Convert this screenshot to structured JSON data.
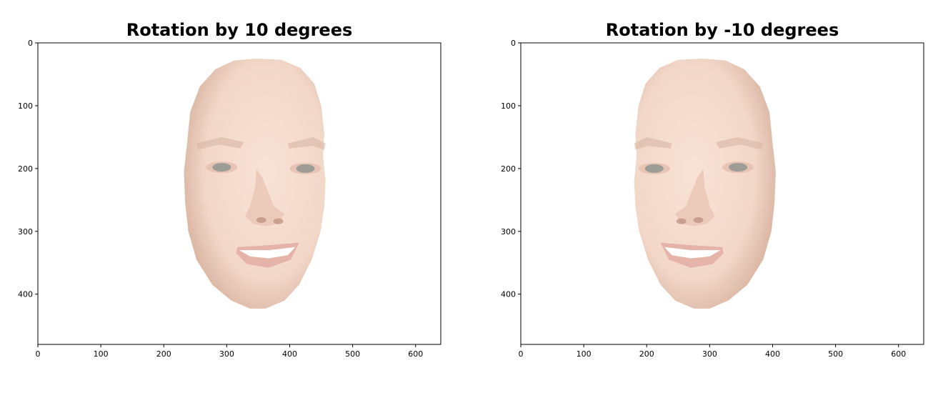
{
  "panels": [
    {
      "title": "Rotation by 10 degrees",
      "x_ticks": [
        "0",
        "100",
        "200",
        "300",
        "400",
        "500",
        "600"
      ],
      "y_ticks": [
        "0",
        "100",
        "200",
        "300",
        "400"
      ],
      "image": "face-rotated-right",
      "rotation_degrees": 10
    },
    {
      "title": "Rotation by -10 degrees",
      "x_ticks": [
        "0",
        "100",
        "200",
        "300",
        "400",
        "500",
        "600"
      ],
      "y_ticks": [
        "0",
        "100",
        "200",
        "300",
        "400"
      ],
      "image": "face-rotated-left",
      "rotation_degrees": -10
    }
  ],
  "axes": {
    "xlim": [
      0,
      640
    ],
    "ylim": [
      480,
      0
    ]
  },
  "colors": {
    "skin": "#f2d7c8",
    "skin_shadow": "#d9b3a0",
    "lips": "#e6b3a8",
    "eyes": "#8f9590"
  }
}
